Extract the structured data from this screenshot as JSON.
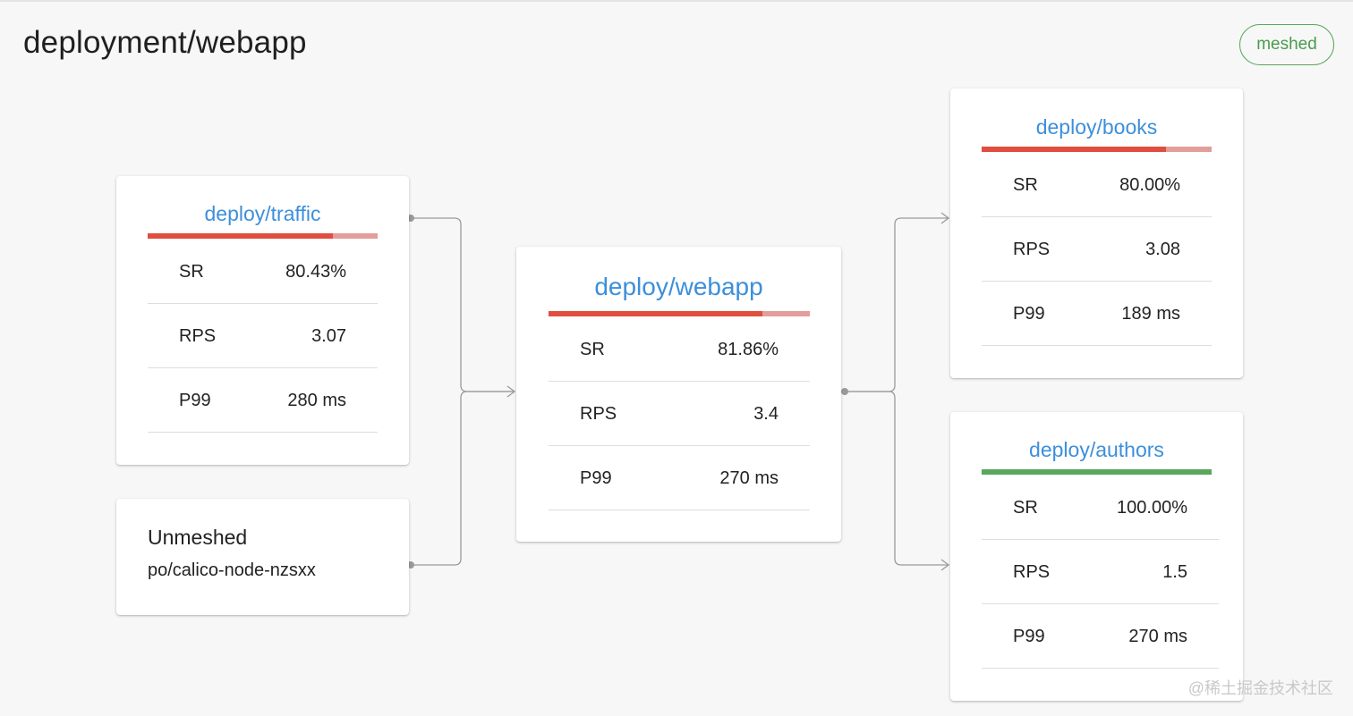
{
  "page": {
    "title": "deployment/webapp",
    "status_badge": "meshed"
  },
  "nodes": {
    "traffic": {
      "name": "deploy/traffic",
      "success_rate": 0.8043,
      "metrics": [
        {
          "label": "SR",
          "value": "80.43%"
        },
        {
          "label": "RPS",
          "value": "3.07"
        },
        {
          "label": "P99",
          "value": "280 ms"
        }
      ]
    },
    "unmeshed": {
      "title": "Unmeshed",
      "pod": "po/calico-node-nzsxx"
    },
    "webapp": {
      "name": "deploy/webapp",
      "success_rate": 0.8186,
      "metrics": [
        {
          "label": "SR",
          "value": "81.86%"
        },
        {
          "label": "RPS",
          "value": "3.4"
        },
        {
          "label": "P99",
          "value": "270 ms"
        }
      ]
    },
    "books": {
      "name": "deploy/books",
      "success_rate": 0.8,
      "metrics": [
        {
          "label": "SR",
          "value": "80.00%"
        },
        {
          "label": "RPS",
          "value": "3.08"
        },
        {
          "label": "P99",
          "value": "189 ms"
        }
      ]
    },
    "authors": {
      "name": "deploy/authors",
      "success_rate": 1.0,
      "metrics": [
        {
          "label": "SR",
          "value": "100.00%"
        },
        {
          "label": "RPS",
          "value": "1.5"
        },
        {
          "label": "P99",
          "value": "270 ms"
        }
      ]
    }
  },
  "colors": {
    "bar_error": "#e04e3f",
    "bar_error_rest": "#e29e9a",
    "bar_ok": "#5aa75c",
    "link": "#3d8fdb",
    "edge": "#9a9a9a"
  },
  "watermark": "@稀土掘金技术社区"
}
